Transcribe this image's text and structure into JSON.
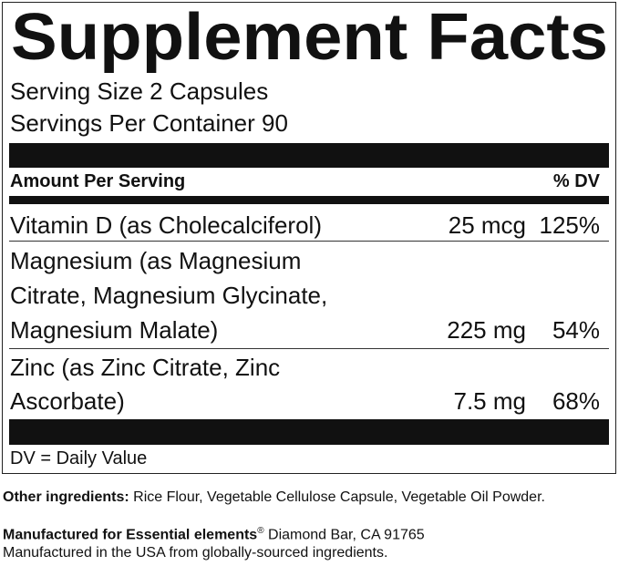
{
  "panel": {
    "title": "Supplement Facts",
    "serving_size": "Serving Size 2 Capsules",
    "servings_per_container": "Servings Per Container 90",
    "header": {
      "amount": "Amount Per Serving",
      "dv": "% DV"
    },
    "rows": [
      {
        "name": [
          "Vitamin D (as Cholecalciferol)"
        ],
        "amount": "25 mcg",
        "dv": "125%"
      },
      {
        "name": [
          "Magnesium (as Magnesium",
          "Citrate, Magnesium Glycinate,",
          "Magnesium Malate)"
        ],
        "amount": "225 mg",
        "dv": "54%"
      },
      {
        "name": [
          "Zinc (as Zinc Citrate, Zinc",
          "Ascorbate)"
        ],
        "amount": "7.5 mg",
        "dv": "68%"
      }
    ],
    "footnote": "DV = Daily Value"
  },
  "other_ingredients": {
    "label": "Other ingredients:",
    "text": " Rice Flour, Vegetable Cellulose Capsule, Vegetable Oil Powder."
  },
  "manufacturer": {
    "label": "Manufactured for Essential elements",
    "mark": "®",
    "text": " Diamond Bar, CA 91765",
    "origin": "Manufactured in the USA from globally-sourced ingredients."
  }
}
